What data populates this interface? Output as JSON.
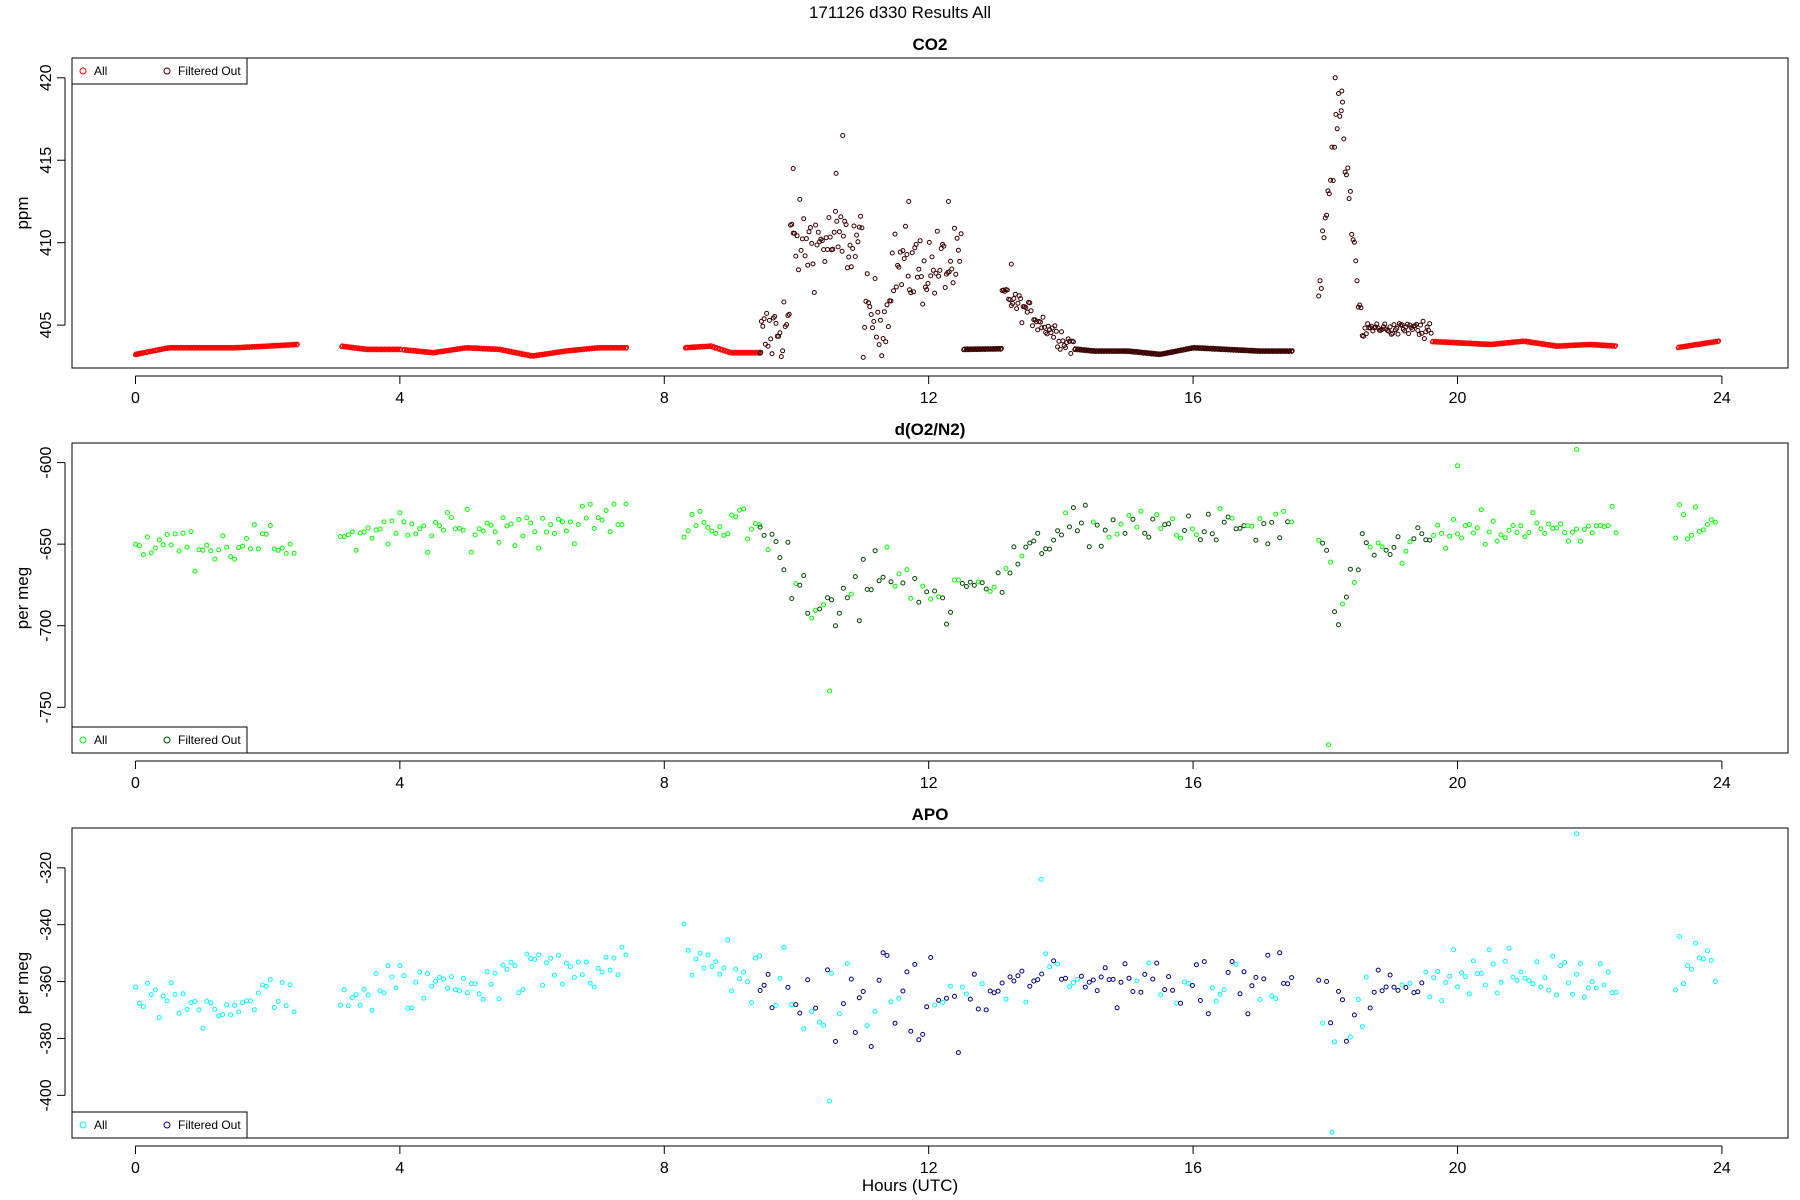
{
  "figure": {
    "title": "171126   d330   Results All",
    "xlabel": "Hours (UTC)"
  },
  "chart_data": [
    {
      "type": "scatter",
      "title": "CO2",
      "ylabel": "ppm",
      "xlim": [
        -0.96,
        25.0
      ],
      "ylim": [
        402.4,
        421.2
      ],
      "xticks": [
        0,
        4,
        8,
        12,
        16,
        20,
        24
      ],
      "yticks": [
        405,
        410,
        415,
        420
      ],
      "legend": {
        "position": "top-left",
        "entries": [
          "All",
          "Filtered Out"
        ]
      },
      "colors": {
        "all": "#ff0000",
        "filtered": "#3a0000"
      },
      "segments": [
        [
          0.0,
          2.45
        ],
        [
          3.1,
          7.45
        ],
        [
          8.3,
          9.45
        ],
        [
          9.45,
          17.5
        ],
        [
          17.9,
          22.4
        ],
        [
          23.3,
          23.95
        ]
      ],
      "series": [
        {
          "name": "All",
          "baseline_hourly": [
            [
              0.0,
              403.2
            ],
            [
              0.5,
              403.6
            ],
            [
              1.0,
              403.6
            ],
            [
              1.5,
              403.6
            ],
            [
              2.0,
              403.7
            ],
            [
              2.45,
              403.8
            ],
            [
              3.1,
              403.7
            ],
            [
              3.5,
              403.5
            ],
            [
              4.0,
              403.5
            ],
            [
              4.5,
              403.3
            ],
            [
              5.0,
              403.6
            ],
            [
              5.5,
              403.5
            ],
            [
              6.0,
              403.1
            ],
            [
              6.5,
              403.4
            ],
            [
              7.0,
              403.6
            ],
            [
              7.45,
              403.6
            ],
            [
              8.3,
              403.6
            ],
            [
              8.7,
              403.7
            ],
            [
              9.0,
              403.3
            ],
            [
              9.45,
              403.3
            ],
            [
              14.0,
              403.6
            ],
            [
              14.5,
              403.4
            ],
            [
              15.0,
              403.4
            ],
            [
              15.5,
              403.2
            ],
            [
              16.0,
              403.6
            ],
            [
              16.5,
              403.5
            ],
            [
              17.0,
              403.4
            ],
            [
              17.5,
              403.4
            ],
            [
              19.0,
              404.2
            ],
            [
              19.5,
              404.0
            ],
            [
              20.0,
              403.9
            ],
            [
              20.5,
              403.8
            ],
            [
              21.0,
              404.0
            ],
            [
              21.5,
              403.7
            ],
            [
              22.0,
              403.8
            ],
            [
              22.4,
              403.7
            ],
            [
              23.3,
              403.6
            ],
            [
              23.95,
              404.0
            ]
          ],
          "peaks": [
            {
              "x": 9.95,
              "y": 414.5
            },
            {
              "x": 10.6,
              "y": 414.2
            },
            {
              "x": 10.7,
              "y": 416.5
            },
            {
              "x": 11.7,
              "y": 412.5
            },
            {
              "x": 12.3,
              "y": 412.5
            },
            {
              "x": 13.25,
              "y": 408.7
            },
            {
              "x": 18.15,
              "y": 420.0
            },
            {
              "x": 18.25,
              "y": 419.2
            }
          ]
        },
        {
          "name": "Filtered Out",
          "note_hours": [
            9.45,
            19.6
          ]
        }
      ]
    },
    {
      "type": "scatter",
      "title": "d(O2/N2)",
      "ylabel": "per meg",
      "xlim": [
        -0.96,
        25.0
      ],
      "ylim": [
        -778,
        -588
      ],
      "xticks": [
        0,
        4,
        8,
        12,
        16,
        20,
        24
      ],
      "yticks": [
        -600,
        -650,
        -700,
        -750
      ],
      "legend": {
        "position": "bottom-left",
        "entries": [
          "All",
          "Filtered Out"
        ]
      },
      "colors": {
        "all": "#00ff00",
        "filtered": "#004a00"
      },
      "segments": [
        [
          0.0,
          2.45
        ],
        [
          3.1,
          7.45
        ],
        [
          8.3,
          9.45
        ],
        [
          9.45,
          17.5
        ],
        [
          17.9,
          22.4
        ],
        [
          23.3,
          23.95
        ]
      ],
      "series": [
        {
          "name": "All",
          "mean_profile": [
            [
              0.0,
              -650
            ],
            [
              2.45,
              -650
            ],
            [
              3.1,
              -645
            ],
            [
              7.45,
              -635
            ],
            [
              8.3,
              -635
            ],
            [
              9.45,
              -640
            ],
            [
              10.5,
              -695
            ],
            [
              11.3,
              -665
            ],
            [
              12.3,
              -685
            ],
            [
              13.2,
              -665
            ],
            [
              14.0,
              -640
            ],
            [
              17.5,
              -640
            ],
            [
              18.0,
              -650
            ],
            [
              18.2,
              -705
            ],
            [
              18.5,
              -660
            ],
            [
              19.5,
              -645
            ],
            [
              22.4,
              -640
            ],
            [
              23.3,
              -640
            ],
            [
              23.95,
              -640
            ]
          ],
          "extremes": [
            {
              "x": 10.5,
              "y": -740
            },
            {
              "x": 18.05,
              "y": -773
            },
            {
              "x": 21.8,
              "y": -592
            },
            {
              "x": 20.0,
              "y": -602
            }
          ]
        },
        {
          "name": "Filtered Out",
          "note_hours": [
            9.45,
            19.6
          ]
        }
      ]
    },
    {
      "type": "scatter",
      "title": "APO",
      "ylabel": "per meg",
      "xlim": [
        -0.96,
        25.0
      ],
      "ylim": [
        -415,
        -306
      ],
      "xticks": [
        0,
        4,
        8,
        12,
        16,
        20,
        24
      ],
      "yticks": [
        -320,
        -340,
        -360,
        -380,
        -400
      ],
      "legend": {
        "position": "bottom-left",
        "entries": [
          "All",
          "Filtered Out"
        ]
      },
      "colors": {
        "all": "#00ffff",
        "filtered": "#00008b"
      },
      "segments": [
        [
          0.0,
          2.45
        ],
        [
          3.1,
          7.45
        ],
        [
          8.3,
          9.45
        ],
        [
          9.45,
          17.5
        ],
        [
          17.9,
          22.4
        ],
        [
          23.3,
          23.95
        ]
      ],
      "series": [
        {
          "name": "All",
          "mean_profile": [
            [
              0.0,
              -368
            ],
            [
              2.45,
              -366
            ],
            [
              3.1,
              -365
            ],
            [
              7.45,
              -352
            ],
            [
              8.3,
              -350
            ],
            [
              9.45,
              -360
            ],
            [
              10.5,
              -372
            ],
            [
              11.5,
              -364
            ],
            [
              12.3,
              -368
            ],
            [
              13.3,
              -362
            ],
            [
              14.0,
              -358
            ],
            [
              17.5,
              -360
            ],
            [
              17.9,
              -362
            ],
            [
              18.2,
              -378
            ],
            [
              18.6,
              -365
            ],
            [
              19.5,
              -358
            ],
            [
              22.4,
              -358
            ],
            [
              23.3,
              -352
            ],
            [
              23.95,
              -352
            ]
          ],
          "extremes": [
            {
              "x": 18.1,
              "y": -413
            },
            {
              "x": 21.8,
              "y": -308
            },
            {
              "x": 10.5,
              "y": -402
            },
            {
              "x": 13.7,
              "y": -324
            }
          ]
        },
        {
          "name": "Filtered Out",
          "note_hours": [
            9.45,
            19.6
          ]
        }
      ]
    }
  ]
}
